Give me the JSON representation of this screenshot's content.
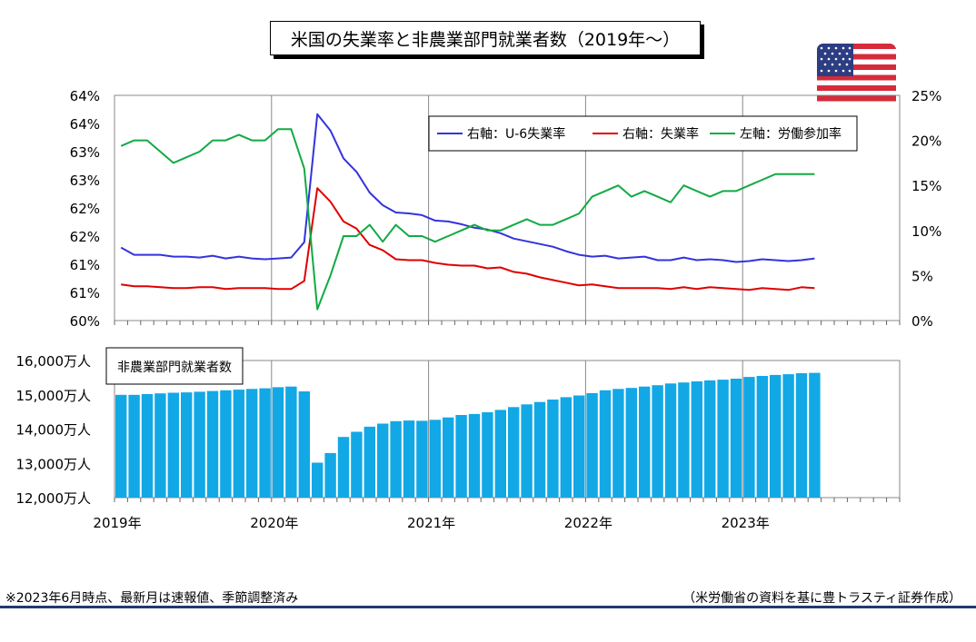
{
  "title": "米国の失業率と非農業部門就業者数（2019年～）",
  "footnote": "※2023年6月時点、最新月は速報値、季節調整済み",
  "source": "（米労働省の資料を基に豊トラスティ証券作成）",
  "flag_icon": "us-flag-icon",
  "colors": {
    "u6": "#3333dd",
    "unemployment": "#e00000",
    "participation": "#11aa44",
    "bars": "#12a8e6"
  },
  "chart_data": [
    {
      "type": "line",
      "x": [
        "2019-01",
        "2019-02",
        "2019-03",
        "2019-04",
        "2019-05",
        "2019-06",
        "2019-07",
        "2019-08",
        "2019-09",
        "2019-10",
        "2019-11",
        "2019-12",
        "2020-01",
        "2020-02",
        "2020-03",
        "2020-04",
        "2020-05",
        "2020-06",
        "2020-07",
        "2020-08",
        "2020-09",
        "2020-10",
        "2020-11",
        "2020-12",
        "2021-01",
        "2021-02",
        "2021-03",
        "2021-04",
        "2021-05",
        "2021-06",
        "2021-07",
        "2021-08",
        "2021-09",
        "2021-10",
        "2021-11",
        "2021-12",
        "2022-01",
        "2022-02",
        "2022-03",
        "2022-04",
        "2022-05",
        "2022-06",
        "2022-07",
        "2022-08",
        "2022-09",
        "2022-10",
        "2022-11",
        "2022-12",
        "2023-01",
        "2023-02",
        "2023-03",
        "2023-04",
        "2023-05",
        "2023-06"
      ],
      "legend": [
        "右軸：U-6失業率",
        "右軸：失業率",
        "左軸：労働参加率"
      ],
      "legend_position": "top-right",
      "left_axis": {
        "ticks": [
          "64%",
          "64%",
          "63%",
          "63%",
          "62%",
          "62%",
          "61%",
          "61%",
          "60%"
        ],
        "min": 60,
        "max": 64
      },
      "right_axis": {
        "ticks": [
          "25%",
          "20%",
          "15%",
          "10%",
          "5%",
          "0%"
        ],
        "min": 0,
        "max": 25
      },
      "series": [
        {
          "name": "右軸：U-6失業率",
          "axis": "right",
          "values": [
            8.1,
            7.3,
            7.3,
            7.3,
            7.1,
            7.1,
            7.0,
            7.2,
            6.9,
            7.1,
            6.9,
            6.8,
            6.9,
            7.0,
            8.7,
            22.9,
            21.1,
            18.0,
            16.5,
            14.2,
            12.8,
            12.0,
            11.9,
            11.7,
            11.1,
            11.0,
            10.7,
            10.3,
            10.1,
            9.7,
            9.1,
            8.8,
            8.5,
            8.2,
            7.7,
            7.3,
            7.1,
            7.2,
            6.9,
            7.0,
            7.1,
            6.7,
            6.7,
            7.0,
            6.7,
            6.8,
            6.7,
            6.5,
            6.6,
            6.8,
            6.7,
            6.6,
            6.7,
            6.9
          ]
        },
        {
          "name": "右軸：失業率",
          "axis": "right",
          "values": [
            4.0,
            3.8,
            3.8,
            3.7,
            3.6,
            3.6,
            3.7,
            3.7,
            3.5,
            3.6,
            3.6,
            3.6,
            3.5,
            3.5,
            4.4,
            14.7,
            13.2,
            11.0,
            10.2,
            8.4,
            7.8,
            6.8,
            6.7,
            6.7,
            6.4,
            6.2,
            6.1,
            6.1,
            5.8,
            5.9,
            5.4,
            5.2,
            4.8,
            4.5,
            4.2,
            3.9,
            4.0,
            3.8,
            3.6,
            3.6,
            3.6,
            3.6,
            3.5,
            3.7,
            3.5,
            3.7,
            3.6,
            3.5,
            3.4,
            3.6,
            3.5,
            3.4,
            3.7,
            3.6
          ]
        },
        {
          "name": "左軸：労働参加率",
          "axis": "left",
          "values": [
            63.1,
            63.2,
            63.2,
            63.0,
            62.8,
            62.9,
            63.0,
            63.2,
            63.2,
            63.3,
            63.2,
            63.2,
            63.4,
            63.4,
            62.7,
            60.2,
            60.8,
            61.5,
            61.5,
            61.7,
            61.4,
            61.7,
            61.5,
            61.5,
            61.4,
            61.5,
            61.6,
            61.7,
            61.6,
            61.6,
            61.7,
            61.8,
            61.7,
            61.7,
            61.8,
            61.9,
            62.2,
            62.3,
            62.4,
            62.2,
            62.3,
            62.2,
            62.1,
            62.4,
            62.3,
            62.2,
            62.3,
            62.3,
            62.4,
            62.5,
            62.6,
            62.6,
            62.6,
            62.6
          ]
        }
      ]
    },
    {
      "type": "bar",
      "title": "非農業部門就業者数",
      "x_labels": [
        "2019年",
        "2020年",
        "2021年",
        "2022年",
        "2023年"
      ],
      "y_ticks": [
        "16,000万人",
        "15,000万人",
        "14,000万人",
        "13,000万人",
        "12,000万人"
      ],
      "ylim": [
        12000,
        16000
      ],
      "unit": "万人",
      "categories": [
        "2019-01",
        "2019-02",
        "2019-03",
        "2019-04",
        "2019-05",
        "2019-06",
        "2019-07",
        "2019-08",
        "2019-09",
        "2019-10",
        "2019-11",
        "2019-12",
        "2020-01",
        "2020-02",
        "2020-03",
        "2020-04",
        "2020-05",
        "2020-06",
        "2020-07",
        "2020-08",
        "2020-09",
        "2020-10",
        "2020-11",
        "2020-12",
        "2021-01",
        "2021-02",
        "2021-03",
        "2021-04",
        "2021-05",
        "2021-06",
        "2021-07",
        "2021-08",
        "2021-09",
        "2021-10",
        "2021-11",
        "2021-12",
        "2022-01",
        "2022-02",
        "2022-03",
        "2022-04",
        "2022-05",
        "2022-06",
        "2022-07",
        "2022-08",
        "2022-09",
        "2022-10",
        "2022-11",
        "2022-12",
        "2023-01",
        "2023-02",
        "2023-03",
        "2023-04",
        "2023-05",
        "2023-06"
      ],
      "values": [
        15000,
        15000,
        15020,
        15040,
        15060,
        15070,
        15090,
        15110,
        15130,
        15150,
        15170,
        15190,
        15220,
        15240,
        15100,
        13020,
        13300,
        13770,
        13920,
        14070,
        14160,
        14230,
        14250,
        14240,
        14270,
        14340,
        14410,
        14440,
        14490,
        14560,
        14640,
        14720,
        14790,
        14860,
        14930,
        14980,
        15050,
        15130,
        15170,
        15200,
        15240,
        15280,
        15330,
        15360,
        15390,
        15420,
        15440,
        15470,
        15520,
        15550,
        15580,
        15600,
        15630,
        15640
      ]
    }
  ]
}
